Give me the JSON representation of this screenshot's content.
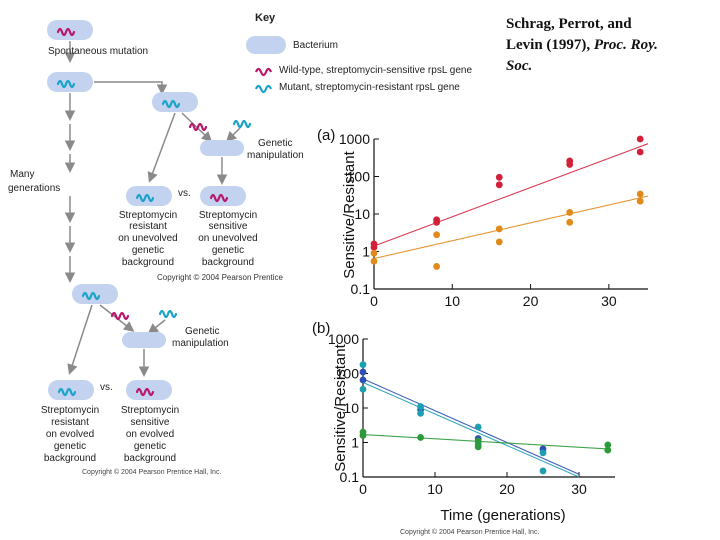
{
  "citation": {
    "line1": "Schrag, Perrot, and",
    "line2_prefix": "Levin (1997), ",
    "line2_journal": "Proc. Roy.",
    "line3_journal": "Soc."
  },
  "key": {
    "title": "Key",
    "bacterium": "Bacterium",
    "wildtype": "Wild-type, streptomycin-sensitive rpsL gene",
    "mutant": "Mutant, streptomycin-resistant rpsL gene",
    "colors": {
      "bacterium": "#c3d3ef",
      "wildtype": "#b8186b",
      "mutant": "#1aa3c8"
    }
  },
  "diagram": {
    "spontaneous_mutation": "Spontaneous mutation",
    "many": "Many",
    "generations": "generations",
    "genetic": "Genetic",
    "manipulation": "manipulation",
    "vs": "vs.",
    "top_left": [
      "Streptomycin",
      "resistant",
      "on unevolved",
      "genetic",
      "background"
    ],
    "top_right": [
      "Streptomycin",
      "sensitive",
      "on unevolved",
      "genetic",
      "background"
    ],
    "bottom_left": [
      "Streptomycin",
      "resistant",
      "on evolved",
      "genetic",
      "background"
    ],
    "bottom_right": [
      "Streptomycin",
      "sensitive",
      "on evolved",
      "genetic",
      "background"
    ],
    "copyright_top": "Copyright © 2004 Pearson Prentice",
    "copyright_bottom": "Copyright © 2004 Pearson Prentice Hall, Inc."
  },
  "chart_data": [
    {
      "type": "scatter",
      "panel_label": "(a)",
      "ylabel": "Sensitive/Resistant",
      "xlabel": "",
      "yscale": "log",
      "ylim": [
        0.1,
        1000
      ],
      "xlim": [
        0,
        35
      ],
      "xticks": [
        "0",
        "10",
        "20",
        "30"
      ],
      "yticks": [
        "0.1",
        "1",
        "10",
        "100",
        "1000"
      ],
      "series": [
        {
          "name": "red",
          "color": "#d3203a",
          "points": [
            [
              0,
              1.6
            ],
            [
              0,
              1.3
            ],
            [
              8,
              7
            ],
            [
              8,
              6
            ],
            [
              16,
              95
            ],
            [
              16,
              60
            ],
            [
              25,
              260
            ],
            [
              25,
              210
            ],
            [
              34,
              1000
            ],
            [
              34,
              450
            ]
          ],
          "fit": [
            [
              0,
              1.4
            ],
            [
              35,
              750
            ]
          ]
        },
        {
          "name": "orange",
          "color": "#e08a1c",
          "points": [
            [
              0,
              0.9
            ],
            [
              0,
              0.55
            ],
            [
              8,
              2.8
            ],
            [
              8,
              0.4
            ],
            [
              16,
              4
            ],
            [
              16,
              1.8
            ],
            [
              25,
              11
            ],
            [
              25,
              6
            ],
            [
              34,
              34
            ],
            [
              34,
              22
            ]
          ],
          "fit": [
            [
              0,
              0.65
            ],
            [
              35,
              30
            ]
          ]
        }
      ]
    },
    {
      "type": "scatter",
      "panel_label": "(b)",
      "ylabel": "Sensitive/Resistant",
      "xlabel": "Time (generations)",
      "yscale": "log",
      "ylim": [
        0.1,
        1000
      ],
      "xlim": [
        0,
        35
      ],
      "xticks": [
        "0",
        "10",
        "20",
        "30"
      ],
      "yticks": [
        "0.1",
        "1",
        "10",
        "100",
        "1000"
      ],
      "series": [
        {
          "name": "blue",
          "color": "#2b4fb5",
          "points": [
            [
              0,
              110
            ],
            [
              0,
              65
            ],
            [
              8,
              9
            ],
            [
              16,
              1.3
            ],
            [
              25,
              0.65
            ]
          ],
          "fit": [
            [
              0,
              70
            ],
            [
              30,
              0.12
            ]
          ]
        },
        {
          "name": "teal",
          "color": "#1e9fb0",
          "points": [
            [
              0,
              180
            ],
            [
              0,
              35
            ],
            [
              8,
              11
            ],
            [
              8,
              7
            ],
            [
              16,
              2.8
            ],
            [
              16,
              0.9
            ],
            [
              25,
              0.5
            ],
            [
              25,
              0.15
            ]
          ],
          "fit": [
            [
              0,
              55
            ],
            [
              30,
              0.1
            ]
          ]
        },
        {
          "name": "green",
          "color": "#2c9a3a",
          "points": [
            [
              0,
              2
            ],
            [
              0,
              1.6
            ],
            [
              8,
              1.4
            ],
            [
              16,
              1.1
            ],
            [
              16,
              0.75
            ],
            [
              34,
              0.85
            ],
            [
              34,
              0.6
            ]
          ],
          "fit": [
            [
              0,
              1.7
            ],
            [
              34,
              0.65
            ]
          ]
        }
      ]
    }
  ]
}
